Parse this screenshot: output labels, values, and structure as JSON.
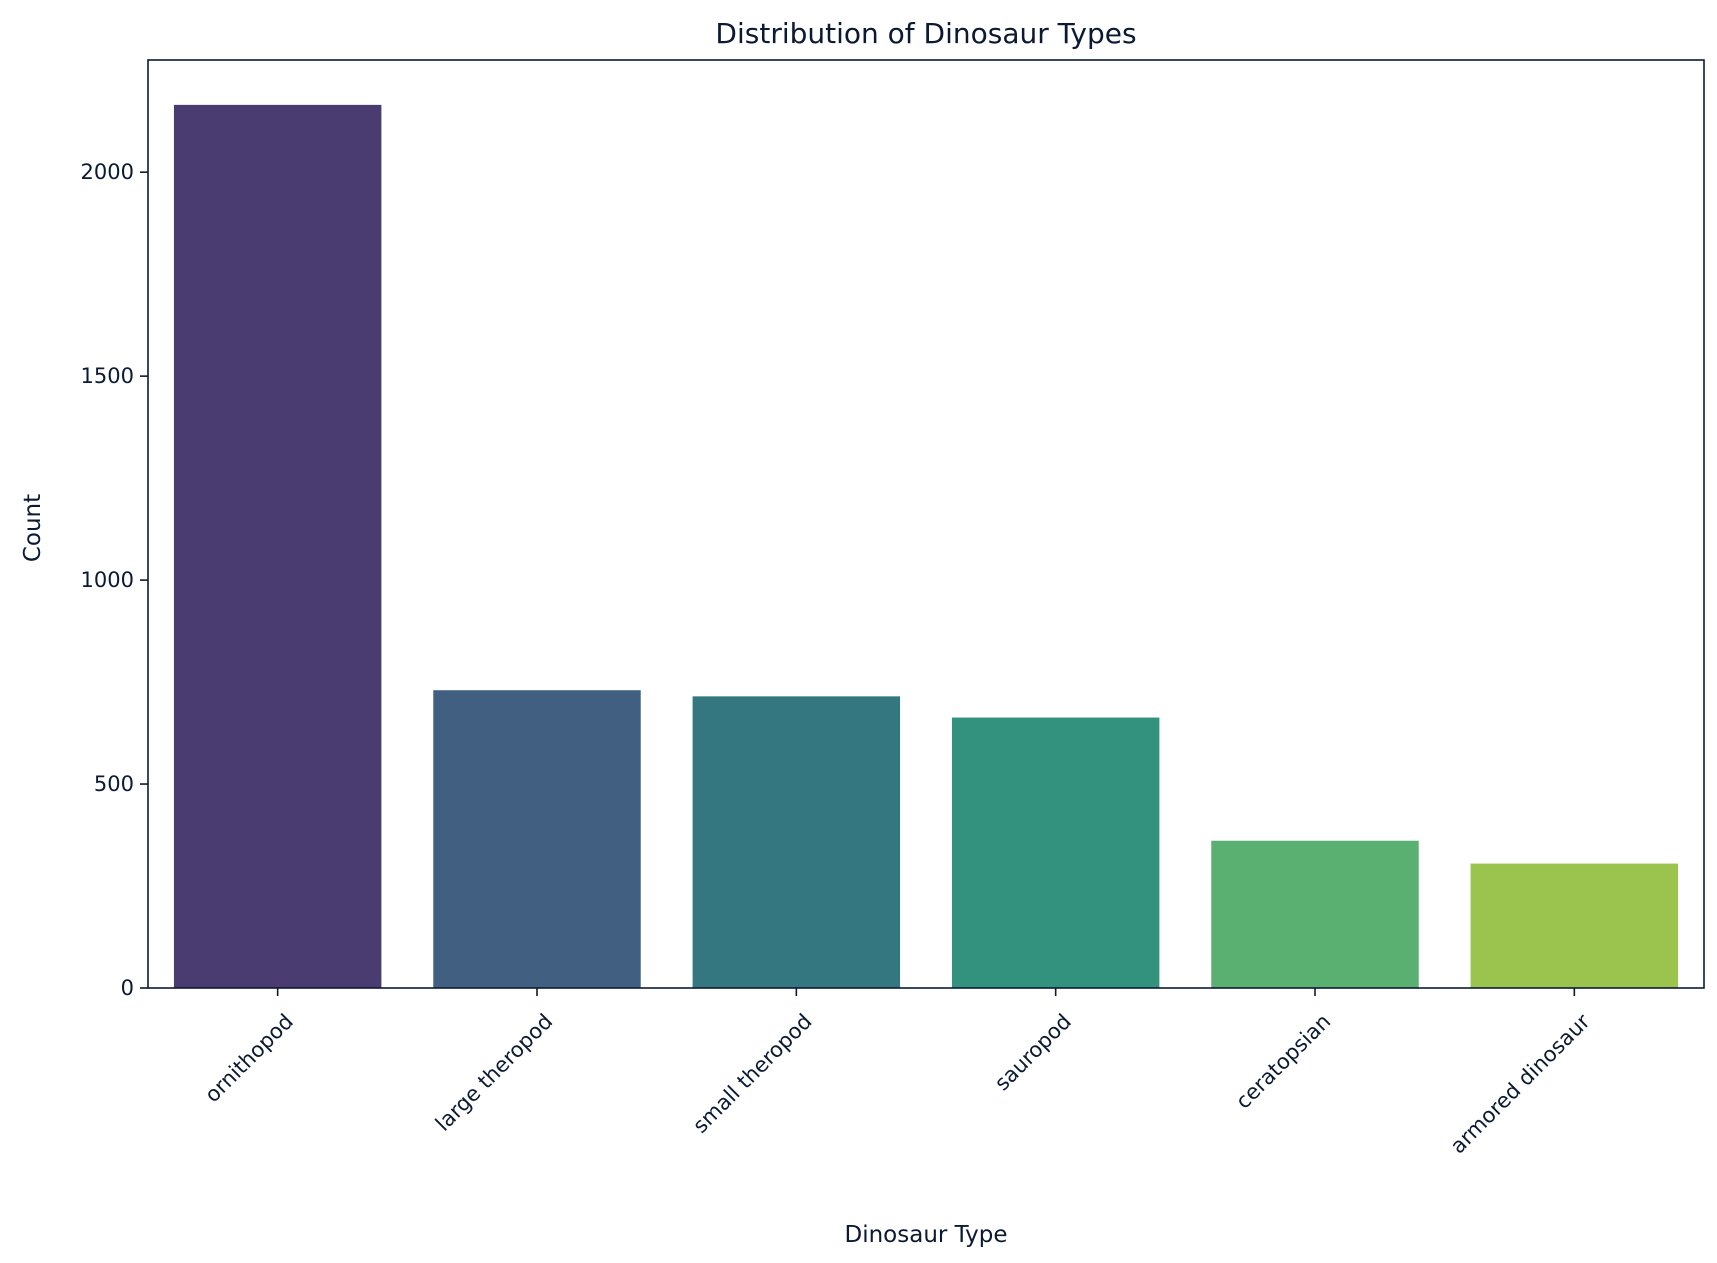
{
  "chart_data": {
    "type": "bar",
    "title": "Distribution of Dinosaur Types",
    "xlabel": "Dinosaur Type",
    "ylabel": "Count",
    "categories": [
      "ornithopod",
      "large theropod",
      "small theropod",
      "sauropod",
      "ceratopsian",
      "armored dinosaur"
    ],
    "values": [
      2165,
      730,
      715,
      663,
      361,
      305
    ],
    "colors": [
      "#4a3b70",
      "#415f80",
      "#347780",
      "#33927e",
      "#5ab070",
      "#9ac44e"
    ],
    "ylim": [
      0,
      2275
    ],
    "yticks": [
      0,
      500,
      1000,
      1500,
      2000
    ],
    "grid": false,
    "legend": "none"
  }
}
